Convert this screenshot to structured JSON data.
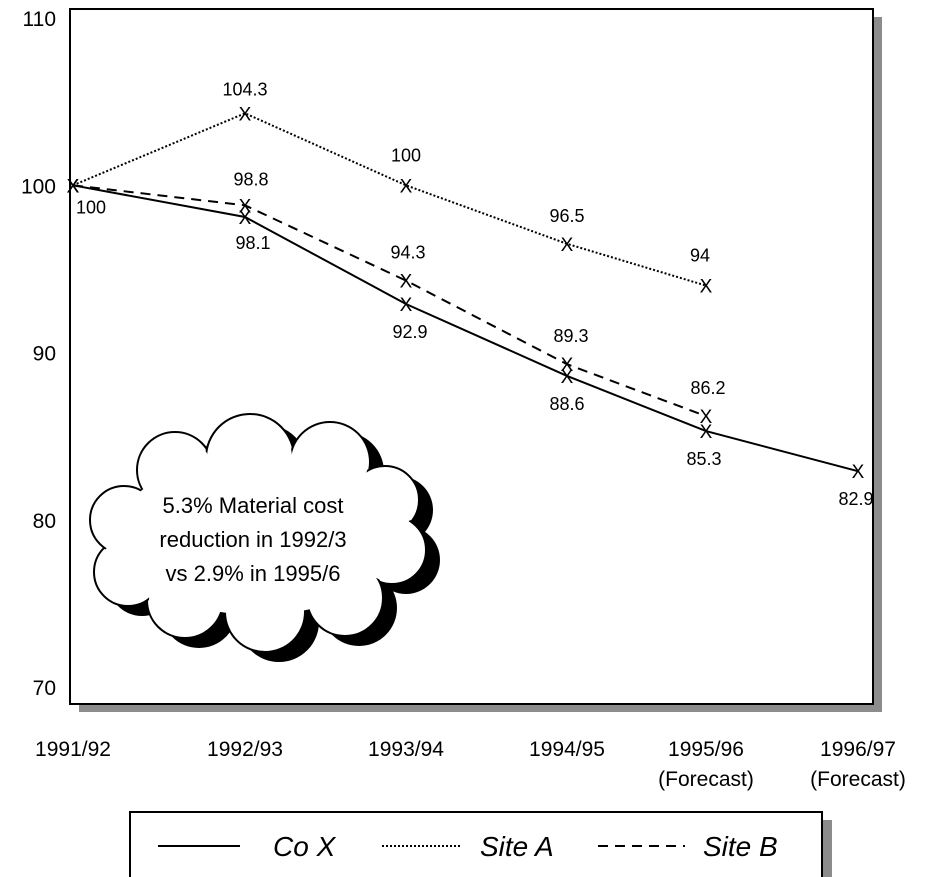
{
  "chart_data": {
    "type": "line",
    "categories": [
      [
        "1991/92"
      ],
      [
        "1992/93"
      ],
      [
        "1993/94"
      ],
      [
        "1994/95"
      ],
      [
        "1995/96",
        "(Forecast)"
      ],
      [
        "1996/97",
        "(Forecast)"
      ]
    ],
    "ylim": [
      70,
      110
    ],
    "yticks": [
      "70",
      "80",
      "90",
      "100",
      "110"
    ],
    "grid": false,
    "legend_position": "bottom",
    "series": [
      {
        "name": "Co X",
        "style": "solid",
        "values": [
          100,
          98.1,
          92.9,
          88.6,
          85.3,
          82.9
        ],
        "labels": [
          "100",
          "98.1",
          "92.9",
          "88.6",
          "85.3",
          "82.9"
        ]
      },
      {
        "name": "Site A",
        "style": "dotted",
        "values": [
          100,
          104.3,
          100,
          96.5,
          94,
          null
        ],
        "labels": [
          "",
          "104.3",
          "100",
          "96.5",
          "94",
          ""
        ]
      },
      {
        "name": "Site B",
        "style": "dashed",
        "values": [
          100,
          98.8,
          94.3,
          89.3,
          86.2,
          null
        ],
        "labels": [
          "",
          "98.8",
          "94.3",
          "89.3",
          "86.2",
          ""
        ]
      }
    ],
    "annotation": {
      "lines": [
        "5.3% Material cost",
        "reduction in 1992/3",
        "vs 2.9% in 1995/6"
      ]
    }
  }
}
